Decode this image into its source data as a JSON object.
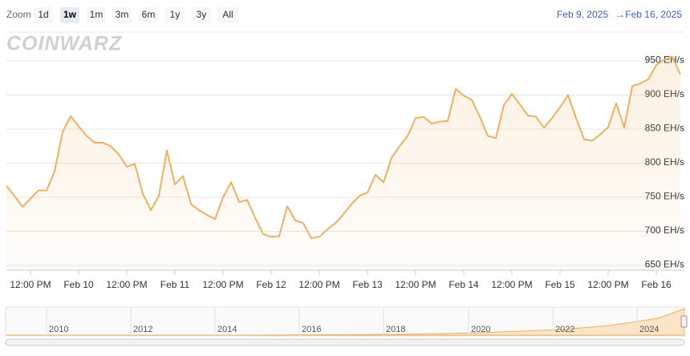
{
  "zoom_label": "Zoom",
  "zoom_buttons": [
    "1d",
    "1w",
    "1m",
    "3m",
    "6m",
    "1y",
    "3y",
    "All"
  ],
  "zoom_selected": "1w",
  "range_from": "Feb 9, 2025",
  "range_arrow": "→",
  "range_to": "Feb 16, 2025",
  "watermark": "COINWARZ",
  "navigator": {
    "labels": [
      "2010",
      "2012",
      "2014",
      "2016",
      "2018",
      "2020",
      "2022",
      "2024"
    ]
  },
  "chart_data": {
    "type": "line",
    "color": "#f0b05a",
    "grid": true,
    "categories": [
      null,
      null,
      null,
      "12:00 PM",
      null,
      null,
      null,
      null,
      null,
      "Feb 10",
      null,
      null,
      null,
      null,
      null,
      "12:00 PM",
      null,
      null,
      null,
      null,
      null,
      "Feb 11",
      null,
      null,
      null,
      null,
      null,
      "12:00 PM",
      null,
      null,
      null,
      null,
      null,
      "Feb 12",
      null,
      null,
      null,
      null,
      null,
      "12:00 PM",
      null,
      null,
      null,
      null,
      null,
      "Feb 13",
      null,
      null,
      null,
      null,
      null,
      "12:00 PM",
      null,
      null,
      null,
      null,
      null,
      "Feb 14",
      null,
      null,
      null,
      null,
      null,
      "12:00 PM",
      null,
      null,
      null,
      null,
      null,
      "Feb 15",
      null,
      null,
      null,
      null,
      null,
      "12:00 PM",
      null,
      null,
      null,
      null,
      null,
      "Feb 16",
      null,
      null,
      null
    ],
    "values": [
      767,
      752,
      736,
      748,
      760,
      760,
      788,
      846,
      869,
      854,
      840,
      830,
      830,
      825,
      813,
      795,
      799,
      755,
      731,
      752,
      819,
      769,
      781,
      740,
      731,
      724,
      718,
      750,
      772,
      743,
      746,
      720,
      696,
      692,
      693,
      737,
      716,
      712,
      690,
      692,
      703,
      712,
      725,
      740,
      752,
      757,
      783,
      772,
      808,
      825,
      840,
      866,
      868,
      858,
      861,
      862,
      909,
      899,
      893,
      868,
      840,
      837,
      885,
      902,
      886,
      870,
      868,
      852,
      866,
      882,
      900,
      866,
      835,
      833,
      842,
      853,
      888,
      852,
      913,
      917,
      923,
      944,
      952,
      956,
      930
    ],
    "ylim": [
      643,
      990
    ],
    "yticks": [
      {
        "value": 650,
        "label": "650 EH/s"
      },
      {
        "value": 700,
        "label": "700 EH/s"
      },
      {
        "value": 750,
        "label": "750 EH/s"
      },
      {
        "value": 800,
        "label": "800 EH/s"
      },
      {
        "value": 850,
        "label": "850 EH/s"
      },
      {
        "value": 900,
        "label": "900 EH/s"
      },
      {
        "value": 950,
        "label": "950 EH/s"
      }
    ]
  }
}
